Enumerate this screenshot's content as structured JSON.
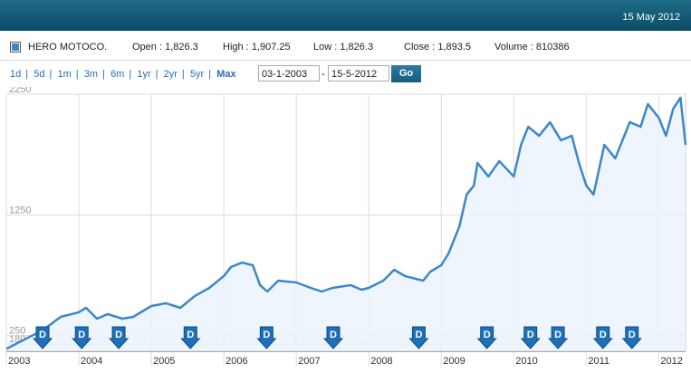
{
  "header": {
    "date": "15 May 2012"
  },
  "quote": [
    {
      "label": "Open :",
      "value": "1,826.3"
    },
    {
      "label": "High :",
      "value": "1,907.25"
    },
    {
      "label": "Low :",
      "value": "1,826.3"
    },
    {
      "label": "Close :",
      "value": "1,893.5"
    },
    {
      "label": "Volume :",
      "value": "810386"
    }
  ],
  "ranges": [
    "1d",
    "5d",
    "1m",
    "3m",
    "6m",
    "1yr",
    "2yr",
    "5yr",
    "Max"
  ],
  "date_from": "03-1-2003",
  "date_separator": "-",
  "date_to": "15-5-2012",
  "button": "Go",
  "chart_data": {
    "type": "line",
    "x": [
      2003.0,
      2003.25,
      2003.5,
      2003.75,
      2004.0,
      2004.1,
      2004.25,
      2004.4,
      2004.6,
      2004.75,
      2005.0,
      2005.2,
      2005.4,
      2005.6,
      2005.8,
      2006.0,
      2006.1,
      2006.25,
      2006.4,
      2006.5,
      2006.6,
      2006.75,
      2007.0,
      2007.2,
      2007.35,
      2007.5,
      2007.75,
      2007.9,
      2008.0,
      2008.2,
      2008.35,
      2008.5,
      2008.75,
      2008.85,
      2009.0,
      2009.1,
      2009.25,
      2009.35,
      2009.45,
      2009.5,
      2009.65,
      2009.8,
      2010.0,
      2010.1,
      2010.2,
      2010.35,
      2010.5,
      2010.65,
      2010.8,
      2010.9,
      2011.0,
      2011.1,
      2011.25,
      2011.4,
      2011.5,
      2011.6,
      2011.75,
      2011.85,
      2012.0,
      2012.1,
      2012.2,
      2012.3,
      2012.37
    ],
    "series": [
      {
        "name": "HERO MOTOCO.",
        "color": "#3d87c8",
        "values": [
          140,
          218,
          293,
          405,
          443,
          480,
          390,
          428,
          390,
          405,
          495,
          518,
          480,
          578,
          645,
          743,
          818,
          855,
          833,
          668,
          615,
          705,
          690,
          645,
          615,
          645,
          668,
          630,
          645,
          705,
          795,
          743,
          705,
          780,
          833,
          930,
          1155,
          1418,
          1493,
          1680,
          1568,
          1695,
          1568,
          1830,
          1980,
          1905,
          2018,
          1868,
          1905,
          1680,
          1493,
          1418,
          1830,
          1718,
          1868,
          2018,
          1980,
          2168,
          2055,
          1905,
          2130,
          2220,
          1830
        ]
      }
    ],
    "xlim": [
      2003.0,
      2012.37
    ],
    "xticks": [
      2003,
      2004,
      2005,
      2006,
      2007,
      2008,
      2009,
      2010,
      2011,
      2012
    ],
    "ylim": [
      120,
      2250
    ],
    "yticks": [
      2250,
      1250,
      250,
      180
    ],
    "grid": true,
    "events": [
      {
        "x": 2003.5,
        "label": "D"
      },
      {
        "x": 2004.04,
        "label": "D"
      },
      {
        "x": 2004.55,
        "label": "D"
      },
      {
        "x": 2005.54,
        "label": "D"
      },
      {
        "x": 2006.59,
        "label": "D"
      },
      {
        "x": 2007.51,
        "label": "D"
      },
      {
        "x": 2008.69,
        "label": "D"
      },
      {
        "x": 2009.63,
        "label": "D"
      },
      {
        "x": 2010.23,
        "label": "D"
      },
      {
        "x": 2010.61,
        "label": "D"
      },
      {
        "x": 2011.23,
        "label": "D"
      },
      {
        "x": 2011.63,
        "label": "D"
      }
    ]
  }
}
